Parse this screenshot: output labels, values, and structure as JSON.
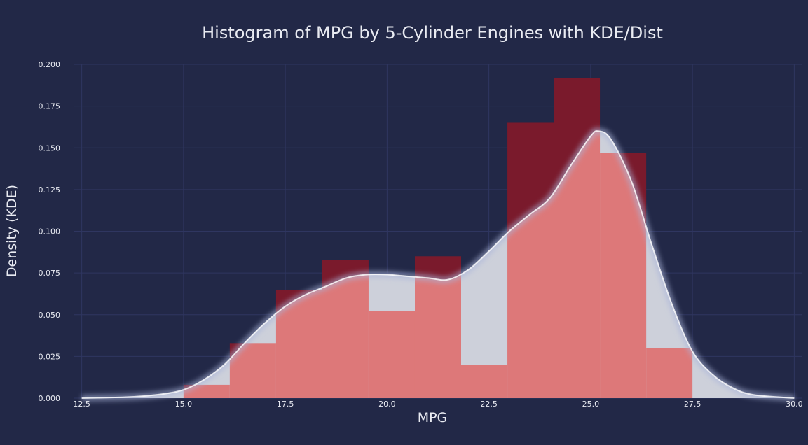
{
  "chart_data": {
    "type": "histogram",
    "title": "Histogram of MPG by 5-Cylinder Engines with KDE/Dist",
    "xlabel": "MPG",
    "ylabel": "Density (KDE)",
    "xlim": [
      12.3,
      30.2
    ],
    "ylim": [
      0,
      0.2
    ],
    "x_ticks": [
      "12.5",
      "15.0",
      "17.5",
      "20.0",
      "22.5",
      "25.0",
      "27.5",
      "30.0"
    ],
    "y_ticks": [
      "0.000",
      "0.025",
      "0.050",
      "0.075",
      "0.100",
      "0.125",
      "0.150",
      "0.175",
      "0.200"
    ],
    "grid": true,
    "bin_edges": [
      15.0,
      16.136,
      17.273,
      18.409,
      19.545,
      20.682,
      21.818,
      22.955,
      24.091,
      25.227,
      26.364,
      27.5
    ],
    "values": [
      0.008,
      0.033,
      0.065,
      0.083,
      0.052,
      0.085,
      0.02,
      0.165,
      0.192,
      0.147,
      0.03
    ],
    "kde": {
      "x": [
        12.5,
        13.5,
        14.0,
        14.5,
        15.0,
        15.5,
        16.0,
        16.5,
        17.0,
        17.5,
        18.0,
        18.5,
        19.0,
        19.5,
        20.0,
        20.5,
        21.0,
        21.5,
        22.0,
        22.5,
        23.0,
        23.5,
        24.0,
        24.5,
        25.0,
        25.2,
        25.5,
        26.0,
        26.5,
        27.0,
        27.5,
        28.0,
        28.5,
        29.0,
        30.0
      ],
      "y": [
        0.0,
        0.0005,
        0.0012,
        0.0025,
        0.005,
        0.011,
        0.02,
        0.033,
        0.045,
        0.055,
        0.062,
        0.067,
        0.072,
        0.074,
        0.074,
        0.073,
        0.072,
        0.071,
        0.077,
        0.088,
        0.1,
        0.11,
        0.12,
        0.139,
        0.157,
        0.16,
        0.155,
        0.13,
        0.092,
        0.056,
        0.028,
        0.014,
        0.006,
        0.002,
        0.0
      ]
    },
    "colors": {
      "background": "#222847",
      "hist_bar": "#7a1a2c",
      "kde_fill": "#cdd0da",
      "overlap": "#dd7879",
      "kde_line": "#ffffff"
    }
  }
}
